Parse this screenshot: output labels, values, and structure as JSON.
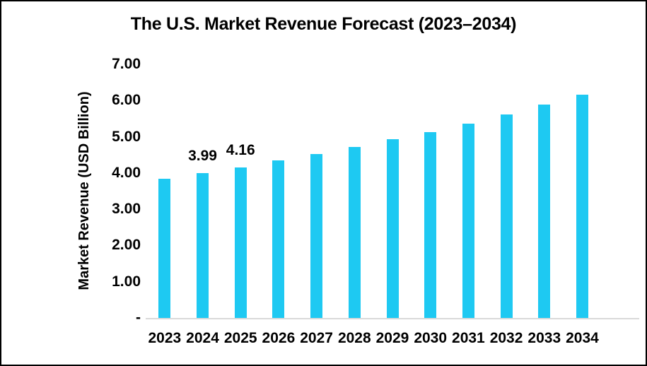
{
  "chart_data": {
    "type": "bar",
    "title": "The U.S. Market Revenue Forecast (2023–2034)",
    "xlabel": "",
    "ylabel": "Market Revenue (USD Billion)",
    "ylim": [
      0,
      7
    ],
    "grid": false,
    "legend": "none",
    "categories": [
      "2023",
      "2024",
      "2025",
      "2026",
      "2027",
      "2028",
      "2029",
      "2030",
      "2031",
      "2032",
      "2033",
      "2034"
    ],
    "values": [
      3.84,
      3.99,
      4.16,
      4.34,
      4.52,
      4.72,
      4.93,
      5.13,
      5.37,
      5.61,
      5.88,
      6.16
    ],
    "y_ticks": [
      {
        "label": "7.00",
        "value": 7
      },
      {
        "label": "6.00",
        "value": 6
      },
      {
        "label": "5.00",
        "value": 5
      },
      {
        "label": "4.00",
        "value": 4
      },
      {
        "label": "3.00",
        "value": 3
      },
      {
        "label": "2.00",
        "value": 2
      },
      {
        "label": "1.00",
        "value": 1
      },
      {
        "label": "-",
        "value": 0
      }
    ],
    "data_labels": [
      {
        "category": "2024",
        "text": "3.99"
      },
      {
        "category": "2025",
        "text": "4.16"
      }
    ],
    "colors": {
      "bar": "#1EC9F2",
      "axis_line": "#D9D9D9",
      "text": "#000000",
      "background": "#FFFFFF"
    }
  }
}
